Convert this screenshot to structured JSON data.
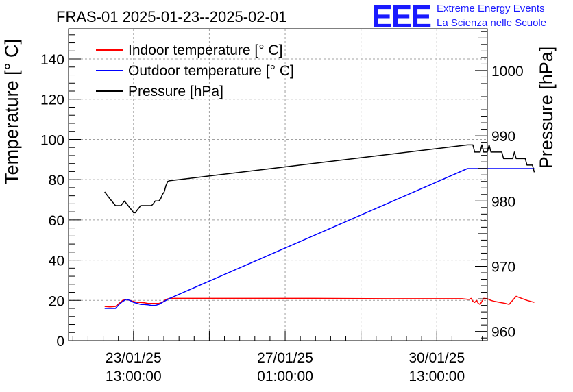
{
  "chart_data": {
    "type": "line",
    "title": "FRAS-01 2025-01-23--2025-02-01",
    "ylabel_left": "Temperature [° C]",
    "ylabel_right": "Pressure [hPa]",
    "ylim_left": [
      0,
      155
    ],
    "ylim_right": [
      958.6,
      1006.4
    ],
    "yticks_left": [
      0,
      20,
      40,
      60,
      80,
      100,
      120,
      140
    ],
    "yticks_right": [
      960,
      970,
      980,
      990,
      1000
    ],
    "xlim_hours": [
      -36.0,
      196.0
    ],
    "xticks": [
      {
        "hours": 0,
        "line1": "23/01/25",
        "line2": "13:00:00"
      },
      {
        "hours": 84,
        "line1": "27/01/25",
        "line2": "01:00:00"
      },
      {
        "hours": 168,
        "line1": "30/01/25",
        "line2": "13:00:00"
      }
    ],
    "grid": true,
    "legend_position": "top-left",
    "series": [
      {
        "name": "Indoor temperature [° C]",
        "axis": "left",
        "color": "#ff0000",
        "x": [
          -16,
          -13,
          -10,
          -8,
          -6,
          -4,
          -2,
          0,
          2,
          4,
          6,
          8,
          10,
          12,
          14,
          16,
          18,
          20,
          30,
          60,
          100,
          140,
          168,
          182,
          185,
          186,
          187,
          188,
          189,
          190,
          191,
          192,
          194,
          196,
          198,
          200,
          203,
          206,
          208,
          210,
          212,
          215,
          218,
          220,
          222
        ],
        "values": [
          17,
          16.8,
          17,
          18.5,
          20,
          20.5,
          20,
          19.5,
          19,
          19,
          18.8,
          18.5,
          18.5,
          18.5,
          18.5,
          19,
          20.5,
          21,
          21,
          21,
          21,
          20.8,
          20.8,
          20.8,
          20.5,
          20.5,
          21,
          19.5,
          19,
          20,
          18.5,
          18,
          21,
          20.8,
          20,
          19.5,
          19,
          18.5,
          18,
          20,
          22,
          21,
          20,
          19.5,
          19
        ]
      },
      {
        "name": "Outdoor temperature [° C]",
        "axis": "left",
        "color": "#0000ff",
        "x": [
          -16,
          -14,
          -12,
          -10,
          -8,
          -6,
          -4,
          -2,
          0,
          2,
          4,
          6,
          8,
          10,
          12,
          14,
          16,
          18,
          20,
          185,
          222
        ],
        "values": [
          16,
          16,
          16,
          16,
          18,
          19.5,
          20.5,
          20,
          19,
          18.5,
          18,
          18,
          17.8,
          17.5,
          17.5,
          18,
          19,
          20,
          21,
          85.5,
          85.5
        ]
      },
      {
        "name": "Pressure [hPa]",
        "axis": "right",
        "color": "#000000",
        "x": [
          -16,
          -13,
          -10,
          -7,
          -5,
          -3,
          -1,
          0,
          1,
          2,
          4,
          6,
          8,
          9,
          10,
          11,
          12,
          13,
          14,
          15,
          16,
          17,
          18,
          19,
          20,
          185,
          186,
          187,
          188,
          189,
          190,
          191,
          192,
          193,
          194,
          195,
          196,
          197,
          198,
          199,
          200,
          201,
          202,
          203,
          204,
          205,
          206,
          207,
          208,
          209,
          210,
          211,
          212,
          213,
          214,
          215,
          216,
          217,
          218,
          219,
          220,
          221,
          222
        ],
        "values": [
          981.4,
          980.3,
          979.3,
          979.3,
          980.0,
          979.3,
          978.6,
          978.2,
          978.2,
          978.6,
          979.3,
          979.3,
          979.3,
          979.3,
          979.3,
          979.6,
          980.0,
          980.0,
          980.0,
          980.3,
          981.0,
          981.4,
          982.4,
          983.0,
          983.1,
          988.6,
          988.6,
          988.6,
          988.6,
          987.5,
          987.5,
          987.5,
          987.5,
          988.6,
          987.5,
          987.5,
          987.5,
          988.6,
          987.5,
          987.5,
          987.5,
          987.5,
          987.5,
          987.5,
          987.5,
          986.5,
          986.5,
          986.5,
          986.5,
          986.5,
          986.5,
          987.5,
          986.5,
          986.5,
          986.5,
          986.5,
          986.5,
          986.5,
          985.5,
          985.5,
          985.5,
          985.5,
          984.4
        ]
      }
    ]
  },
  "branding": {
    "logo_text": "EEE",
    "line1": "Extreme Energy Events",
    "line2": "La Scienza nelle Scuole",
    "color": "#1a1aff"
  }
}
